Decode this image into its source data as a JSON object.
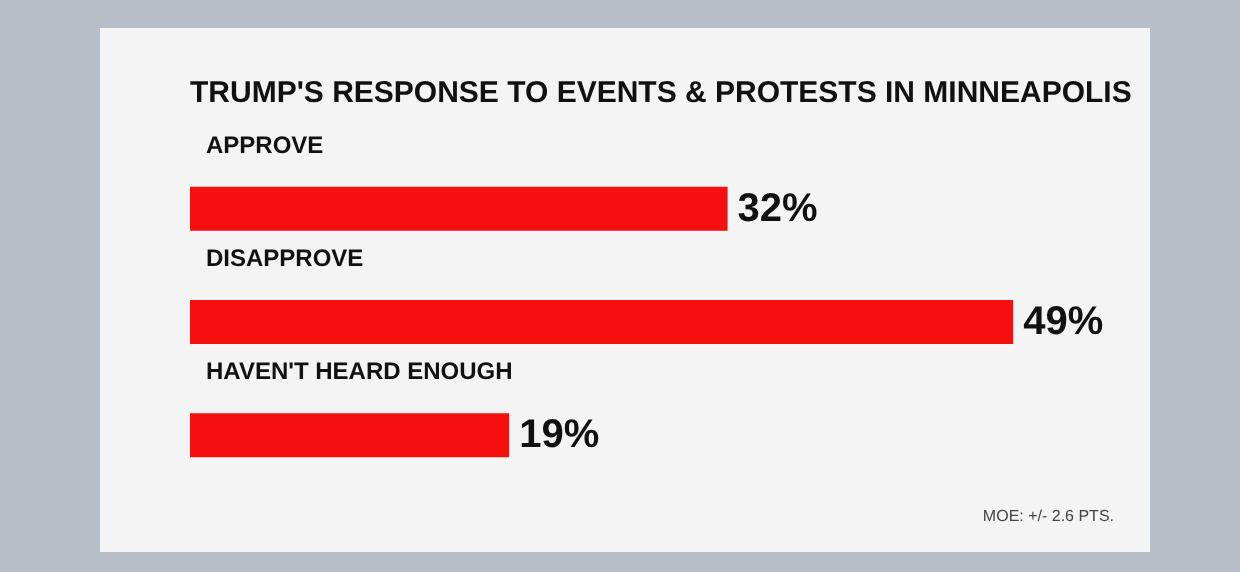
{
  "chart_data": {
    "type": "bar",
    "orientation": "horizontal",
    "title": "TRUMP'S RESPONSE TO EVENTS & PROTESTS IN MINNEAPOLIS",
    "categories": [
      "APPROVE",
      "DISAPPROVE",
      "HAVEN'T HEARD ENOUGH"
    ],
    "values": [
      32,
      49,
      19
    ],
    "color": "#f50f0f",
    "value_labels": [
      "32%",
      "49%",
      "19%"
    ],
    "annotations": [
      "MOE: +/- 2.6 PTS."
    ]
  }
}
